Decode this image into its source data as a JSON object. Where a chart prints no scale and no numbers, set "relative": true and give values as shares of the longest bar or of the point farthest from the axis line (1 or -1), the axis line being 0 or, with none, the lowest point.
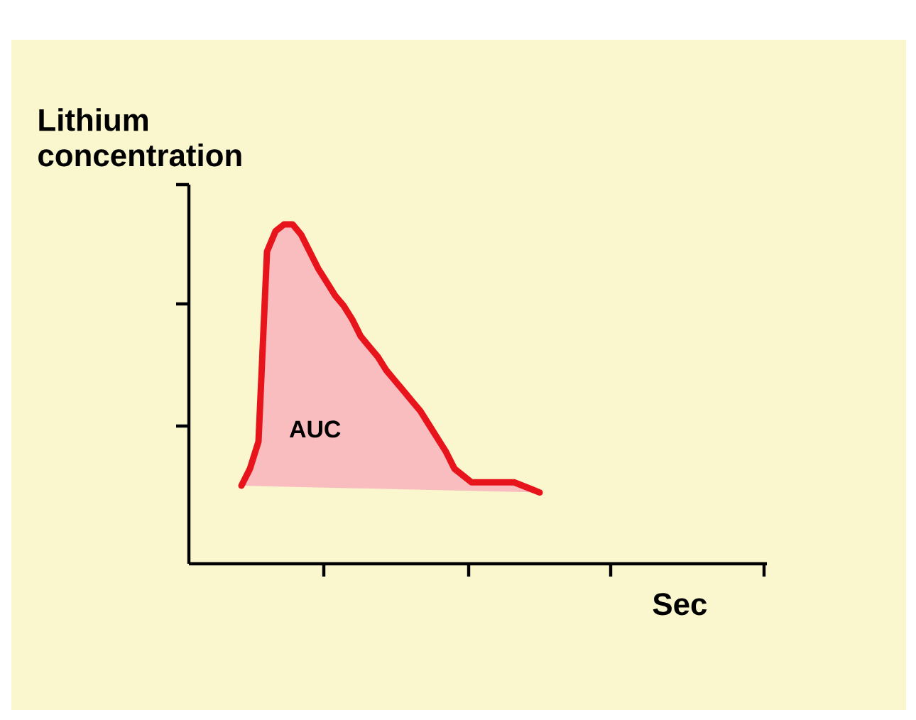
{
  "chart_data": {
    "type": "area",
    "ylabel": "Lithium concentration",
    "xlabel": "Sec",
    "relative": true,
    "categories": [
      null,
      null,
      null,
      null,
      null,
      null,
      null,
      null,
      null,
      null,
      null,
      null,
      null,
      null,
      null,
      null,
      null,
      null,
      null,
      null,
      null,
      null,
      null,
      null,
      null,
      null,
      null,
      null,
      null,
      null,
      null,
      null,
      null,
      null,
      null,
      null
    ],
    "series": [
      {
        "color": "#e8141c",
        "values": [
          0.23,
          0.28,
          0.36,
          0.92,
          0.98,
          1,
          1,
          0.97,
          0.92,
          0.87,
          0.83,
          0.79,
          0.76,
          0.72,
          0.67,
          0.64,
          0.61,
          0.57,
          0.54,
          0.51,
          0.48,
          0.45,
          0.41,
          0.37,
          0.33,
          0.28,
          0.26,
          0.24,
          0.24,
          0.24,
          0.24,
          0.24,
          0.24,
          0.23,
          0.22,
          0.21
        ]
      }
    ],
    "annotations": [
      "AUC"
    ]
  }
}
